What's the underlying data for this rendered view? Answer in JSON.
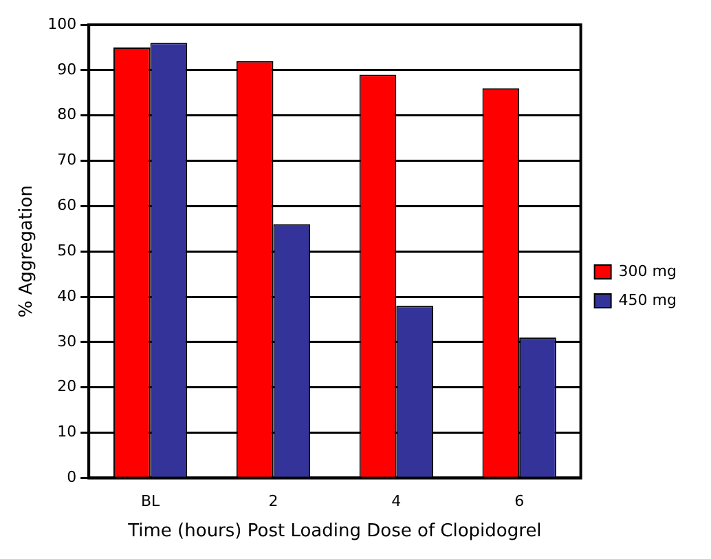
{
  "chart_data": {
    "type": "bar",
    "xlabel": "Time (hours) Post Loading Dose of Clopidogrel",
    "ylabel": "% Aggregation",
    "categories": [
      "BL",
      "2",
      "4",
      "6"
    ],
    "series": [
      {
        "name": "300 mg",
        "color": "#ff0000",
        "values": [
          95,
          92,
          89,
          86
        ]
      },
      {
        "name": "450 mg",
        "color": "#333399",
        "values": [
          96,
          56,
          38,
          31
        ]
      }
    ],
    "ylim": [
      0,
      100
    ],
    "yticks": [
      0,
      10,
      20,
      30,
      40,
      50,
      60,
      70,
      80,
      90,
      100
    ],
    "grid": "y",
    "legend": "right"
  }
}
